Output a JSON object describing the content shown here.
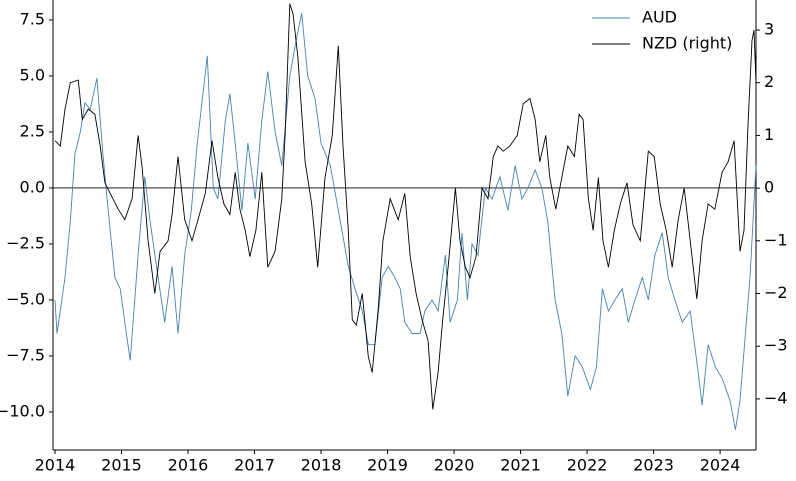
{
  "chart_data": {
    "type": "line",
    "xlim": [
      2013.97,
      2024.54
    ],
    "xticks": [
      2014,
      2015,
      2016,
      2017,
      2018,
      2019,
      2020,
      2021,
      2022,
      2023,
      2024
    ],
    "ylim": [
      -11.7,
      8.39
    ],
    "yticks": [
      {
        "value": -10,
        "label": "−10.0"
      },
      {
        "value": -7.5,
        "label": "−7.5"
      },
      {
        "value": -5,
        "label": "−5.0"
      },
      {
        "value": -2.5,
        "label": "−2.5"
      },
      {
        "value": 0,
        "label": "0.0"
      },
      {
        "value": 2.5,
        "label": "2.5"
      },
      {
        "value": 5,
        "label": "5.0"
      },
      {
        "value": 7.5,
        "label": "7.5"
      }
    ],
    "y2lim": [
      -4.97,
      3.57
    ],
    "y2ticks": [
      {
        "value": -4,
        "label": "−4"
      },
      {
        "value": -3,
        "label": "−3"
      },
      {
        "value": -2,
        "label": "−2"
      },
      {
        "value": -1,
        "label": "−1"
      },
      0,
      1,
      2,
      3
    ],
    "hline": 0,
    "legend": "upper right",
    "series": [
      {
        "name": "AUD",
        "color": "#4682b4",
        "x": [
          2014.0,
          2014.03,
          2014.15,
          2014.23,
          2014.3,
          2014.38,
          2014.45,
          2014.53,
          2014.63,
          2014.72,
          2014.8,
          2014.9,
          2014.98,
          2015.05,
          2015.13,
          2015.25,
          2015.35,
          2015.43,
          2015.55,
          2015.65,
          2015.76,
          2015.85,
          2015.95,
          2016.05,
          2016.14,
          2016.29,
          2016.38,
          2016.45,
          2016.56,
          2016.63,
          2016.71,
          2016.81,
          2016.9,
          2017.01,
          2017.11,
          2017.2,
          2017.31,
          2017.41,
          2017.53,
          2017.62,
          2017.71,
          2017.8,
          2017.91,
          2018.0,
          2018.14,
          2018.29,
          2018.41,
          2018.51,
          2018.62,
          2018.71,
          2018.81,
          2018.92,
          2019.01,
          2019.11,
          2019.19,
          2019.26,
          2019.37,
          2019.49,
          2019.56,
          2019.67,
          2019.76,
          2019.87,
          2019.94,
          2020.05,
          2020.12,
          2020.2,
          2020.27,
          2020.36,
          2020.47,
          2020.57,
          2020.69,
          2020.81,
          2020.92,
          2021.02,
          2021.11,
          2021.22,
          2021.32,
          2021.41,
          2021.52,
          2021.62,
          2021.71,
          2021.82,
          2021.93,
          2022.05,
          2022.14,
          2022.23,
          2022.32,
          2022.42,
          2022.53,
          2022.62,
          2022.72,
          2022.83,
          2022.92,
          2023.02,
          2023.13,
          2023.22,
          2023.32,
          2023.43,
          2023.55,
          2023.66,
          2023.73,
          2023.82,
          2023.93,
          2024.03,
          2024.15,
          2024.23,
          2024.3,
          2024.38,
          2024.45,
          2024.54
        ],
        "values": [
          -5,
          -6.5,
          -4,
          -1.5,
          1.5,
          2.5,
          3.8,
          3.5,
          4.9,
          1.5,
          -1,
          -4,
          -4.5,
          -6,
          -7.7,
          -3,
          0.5,
          -1.5,
          -4,
          -6,
          -3.5,
          -6.5,
          -3,
          -1,
          2,
          5.9,
          0,
          -0.5,
          3,
          4.2,
          2,
          -1,
          2,
          -0.5,
          3,
          5.2,
          2.5,
          1,
          5,
          6.5,
          7.8,
          5,
          4,
          2,
          1,
          -1.5,
          -3.5,
          -4.5,
          -5.5,
          -7,
          -7,
          -4,
          -3.5,
          -4,
          -4.5,
          -6,
          -6.5,
          -6.5,
          -5.5,
          -5,
          -5.5,
          -3,
          -6,
          -5,
          -2,
          -5,
          -2.5,
          -3,
          0,
          -0.5,
          0.5,
          -1,
          1,
          -0.5,
          0,
          0.8,
          0,
          -1.5,
          -5,
          -6.5,
          -9.3,
          -7.5,
          -8,
          -9,
          -8,
          -4.5,
          -5.5,
          -5,
          -4.5,
          -6,
          -5,
          -4,
          -5,
          -3,
          -2,
          -4,
          -5,
          -6,
          -5.5,
          -8,
          -9.7,
          -7,
          -8,
          -8.5,
          -9.5,
          -10.8,
          -9.5,
          -6.5,
          -4,
          1
        ]
      },
      {
        "name": "NZD (right)",
        "color": "#000000",
        "axis": "y2",
        "x": [
          2014.0,
          2014.08,
          2014.15,
          2014.23,
          2014.35,
          2014.41,
          2014.5,
          2014.6,
          2014.68,
          2014.75,
          2014.83,
          2014.95,
          2015.05,
          2015.16,
          2015.25,
          2015.31,
          2015.4,
          2015.5,
          2015.58,
          2015.7,
          2015.76,
          2015.85,
          2015.95,
          2016.06,
          2016.15,
          2016.26,
          2016.36,
          2016.45,
          2016.54,
          2016.63,
          2016.71,
          2016.78,
          2016.86,
          2016.93,
          2017.02,
          2017.11,
          2017.2,
          2017.31,
          2017.41,
          2017.46,
          2017.53,
          2017.58,
          2017.65,
          2017.76,
          2017.86,
          2017.95,
          2018.06,
          2018.17,
          2018.26,
          2018.33,
          2018.41,
          2018.47,
          2018.53,
          2018.62,
          2018.71,
          2018.77,
          2018.86,
          2018.93,
          2019.04,
          2019.16,
          2019.26,
          2019.34,
          2019.43,
          2019.52,
          2019.61,
          2019.68,
          2019.76,
          2019.83,
          2019.91,
          2020.02,
          2020.09,
          2020.17,
          2020.24,
          2020.33,
          2020.42,
          2020.51,
          2020.59,
          2020.66,
          2020.74,
          2020.84,
          2020.95,
          2021.04,
          2021.14,
          2021.22,
          2021.29,
          2021.38,
          2021.44,
          2021.53,
          2021.62,
          2021.71,
          2021.81,
          2021.88,
          2021.94,
          2022.02,
          2022.09,
          2022.17,
          2022.24,
          2022.32,
          2022.41,
          2022.5,
          2022.6,
          2022.69,
          2022.8,
          2022.92,
          2023.01,
          2023.1,
          2023.19,
          2023.28,
          2023.37,
          2023.46,
          2023.55,
          2023.65,
          2023.73,
          2023.82,
          2023.92,
          2024.03,
          2024.12,
          2024.21,
          2024.3,
          2024.36,
          2024.42,
          2024.48,
          2024.51,
          2024.54
        ],
        "values": [
          0.9,
          0.8,
          1.5,
          2,
          2.05,
          1.3,
          1.5,
          1.4,
          0.8,
          0.1,
          -0.1,
          -0.4,
          -0.6,
          -0.2,
          1,
          0.4,
          -1,
          -2,
          -1.2,
          -1,
          -0.5,
          0.6,
          -0.6,
          -1,
          -0.6,
          -0.1,
          0.9,
          0.2,
          -0.3,
          -0.5,
          0.3,
          -0.4,
          -0.8,
          -1.3,
          -0.8,
          0.3,
          -1.5,
          -1.2,
          -0.2,
          1,
          3.5,
          3.3,
          2.5,
          0.5,
          -0.3,
          -1.5,
          0.2,
          1,
          2.7,
          0.8,
          -0.8,
          -2.5,
          -2.6,
          -2,
          -3.2,
          -3.5,
          -2.3,
          -1,
          -0.2,
          -0.6,
          -0.1,
          -1.3,
          -2,
          -2.5,
          -2.9,
          -4.2,
          -3.5,
          -2.5,
          -1.5,
          0,
          -1,
          -1.5,
          -1.7,
          -1.3,
          0,
          -0.2,
          0.6,
          0.8,
          0.7,
          0.8,
          1,
          1.6,
          1.7,
          1.3,
          0.5,
          1,
          0.2,
          -0.4,
          0.2,
          0.8,
          0.6,
          1.4,
          1.3,
          -0.2,
          -0.8,
          0.2,
          -1,
          -1.5,
          -0.8,
          -0.3,
          0.1,
          -0.7,
          -1,
          0.7,
          0.6,
          -0.3,
          -0.8,
          -1.5,
          -0.6,
          0,
          -1,
          -2.1,
          -1,
          -0.3,
          -0.4,
          0.3,
          0.5,
          0.9,
          -1.2,
          -0.8,
          1.2,
          2.8,
          3,
          2
        ]
      }
    ]
  }
}
